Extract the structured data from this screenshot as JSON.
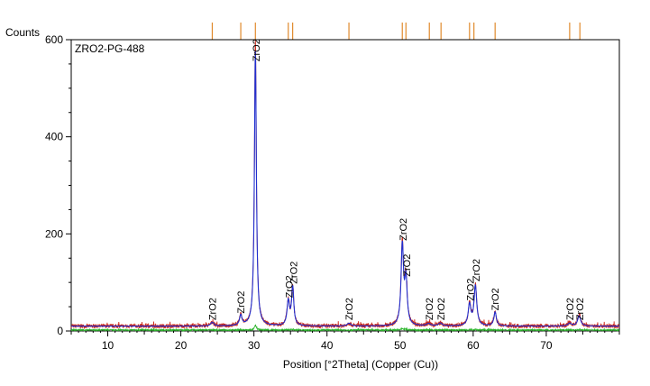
{
  "chart_data": {
    "type": "line",
    "title": "",
    "sample_label": "ZRO2-PG-488",
    "ylabel": "Counts",
    "xlabel": "Position [°2Theta] (Copper (Cu))",
    "xlim": [
      5,
      80
    ],
    "ylim": [
      0,
      600
    ],
    "x_ticks": [
      10,
      20,
      30,
      40,
      50,
      60,
      70
    ],
    "y_ticks": [
      0,
      200,
      400,
      600
    ],
    "grid": false,
    "colors": {
      "observed": "#cc2a1a",
      "calculated": "#1f2fd0",
      "difference": "#2fb52f",
      "reference": "#e08a2c"
    },
    "peaks": [
      {
        "x": 24.3,
        "y": 8,
        "w": 0.25
      },
      {
        "x": 28.2,
        "y": 22,
        "w": 0.2
      },
      {
        "x": 30.2,
        "y": 590,
        "w": 0.16
      },
      {
        "x": 34.7,
        "y": 52,
        "w": 0.2
      },
      {
        "x": 35.3,
        "y": 82,
        "w": 0.18
      },
      {
        "x": 43.0,
        "y": 6,
        "w": 0.3
      },
      {
        "x": 50.3,
        "y": 170,
        "w": 0.2
      },
      {
        "x": 50.8,
        "y": 95,
        "w": 0.2
      },
      {
        "x": 53.9,
        "y": 5,
        "w": 0.3
      },
      {
        "x": 55.5,
        "y": 6,
        "w": 0.3
      },
      {
        "x": 59.5,
        "y": 45,
        "w": 0.22
      },
      {
        "x": 60.3,
        "y": 85,
        "w": 0.22
      },
      {
        "x": 63.0,
        "y": 30,
        "w": 0.2
      },
      {
        "x": 73.2,
        "y": 6,
        "w": 0.3
      },
      {
        "x": 74.5,
        "y": 22,
        "w": 0.25
      }
    ],
    "background_counts": 10,
    "reference_lines": [
      24.3,
      28.2,
      30.2,
      34.7,
      35.3,
      43.0,
      50.3,
      50.8,
      54.0,
      55.6,
      59.5,
      60.1,
      63.0,
      73.2,
      74.6
    ],
    "annotations": [
      {
        "x": 24.3,
        "y": 22,
        "text": "ZrO2"
      },
      {
        "x": 28.2,
        "y": 36,
        "text": "ZrO2"
      },
      {
        "x": 30.3,
        "y": 555,
        "text": "ZrO2"
      },
      {
        "x": 34.8,
        "y": 68,
        "text": "ZrO2"
      },
      {
        "x": 35.4,
        "y": 97,
        "text": "ZrO2"
      },
      {
        "x": 43.0,
        "y": 22,
        "text": "ZrO2"
      },
      {
        "x": 50.4,
        "y": 186,
        "text": "ZrO2"
      },
      {
        "x": 50.9,
        "y": 112,
        "text": "ZrO2"
      },
      {
        "x": 54.0,
        "y": 22,
        "text": "ZrO2"
      },
      {
        "x": 55.6,
        "y": 22,
        "text": "ZrO2"
      },
      {
        "x": 59.6,
        "y": 62,
        "text": "ZrO2"
      },
      {
        "x": 60.4,
        "y": 102,
        "text": "ZrO2"
      },
      {
        "x": 63.0,
        "y": 42,
        "text": "ZrO2"
      },
      {
        "x": 73.2,
        "y": 22,
        "text": "ZrO2"
      },
      {
        "x": 74.6,
        "y": 22,
        "text": "ZrO2"
      }
    ]
  }
}
